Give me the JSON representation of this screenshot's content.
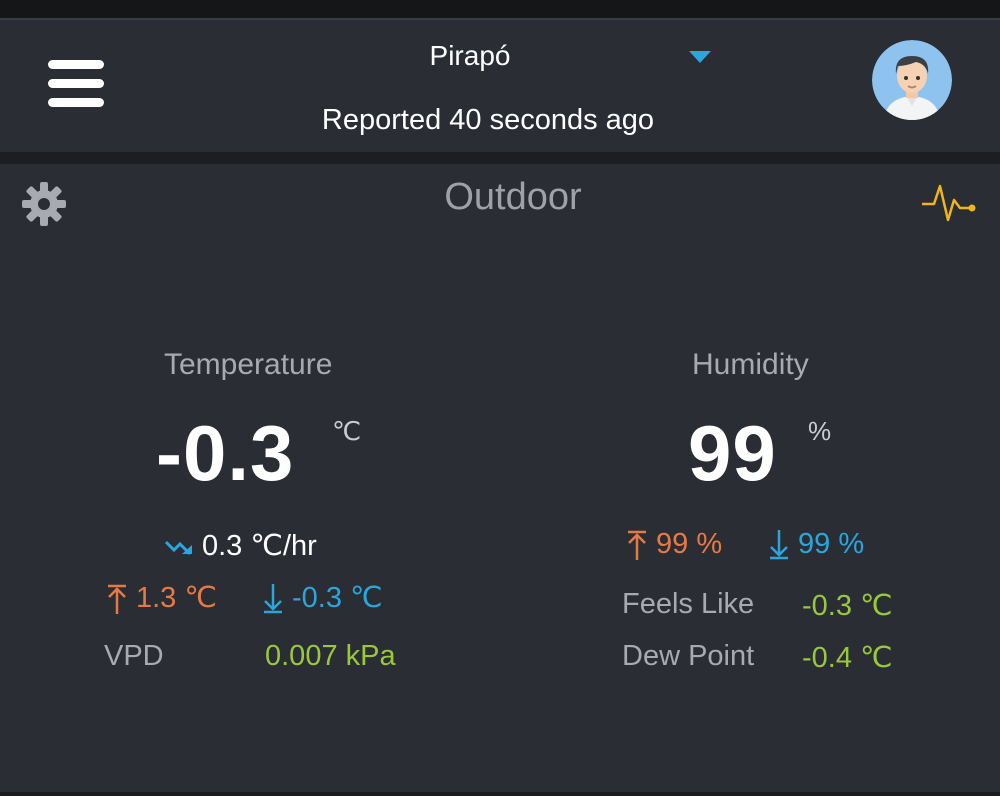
{
  "header": {
    "station_name": "Pirapó",
    "reported": "Reported 40 seconds ago"
  },
  "panel": {
    "title": "Outdoor"
  },
  "temperature": {
    "label": "Temperature",
    "value": "-0.3",
    "unit": "℃",
    "trend": "0.3 ℃/hr",
    "high": "1.3 ℃",
    "low": "-0.3 ℃",
    "vpd_label": "VPD",
    "vpd_value": "0.007 kPa"
  },
  "humidity": {
    "label": "Humidity",
    "value": "99",
    "unit": "%",
    "high": "99 %",
    "low": "99 %",
    "feels_like_label": "Feels Like",
    "feels_like_value": "-0.3 ℃",
    "dew_point_label": "Dew Point",
    "dew_point_value": "-0.4 ℃"
  },
  "icons": {
    "menu": "menu-icon",
    "caret": "caret-down-icon",
    "avatar": "avatar",
    "settings": "gear-icon",
    "chart": "pulse-icon",
    "trend": "trend-down-icon",
    "high": "arrow-up-icon",
    "low": "arrow-down-icon"
  },
  "colors": {
    "background": "#2a2d33",
    "accent": "#2aa6dd",
    "high": "#e57a45",
    "low": "#2aa6dd",
    "positive": "#9ac83b",
    "pulse": "#f1b51c"
  }
}
